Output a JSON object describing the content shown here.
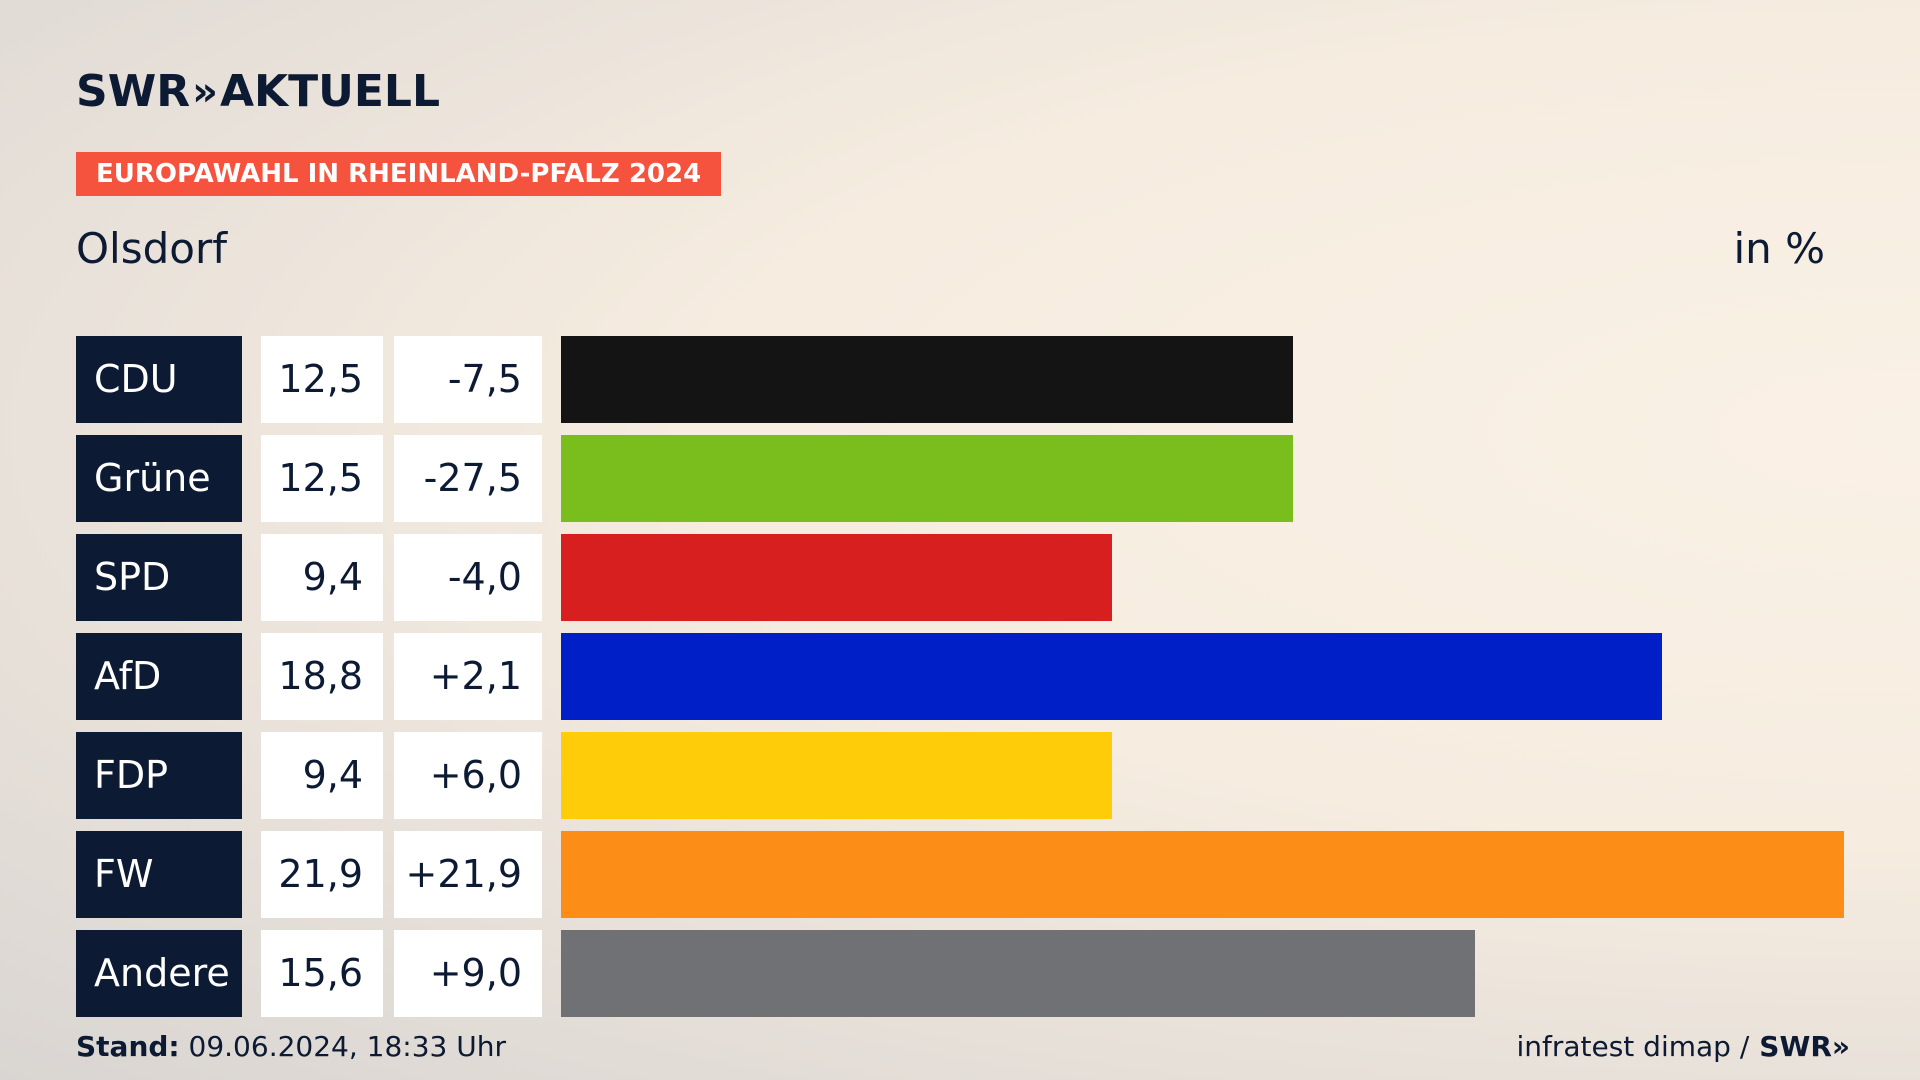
{
  "brand": {
    "logo_name": "SWR",
    "logo_chevrons": "»",
    "logo_suffix": "AKTUELL"
  },
  "tag": "EUROPAWAHL IN RHEINLAND-PFALZ 2024",
  "place": "Olsdorf",
  "unit": "in %",
  "chart_data": {
    "type": "bar",
    "orientation": "horizontal",
    "title": "Olsdorf",
    "unit": "in %",
    "categories": [
      "CDU",
      "Grüne",
      "SPD",
      "AfD",
      "FDP",
      "FW",
      "Andere"
    ],
    "values": [
      12.5,
      12.5,
      9.4,
      18.8,
      9.4,
      21.9,
      15.6
    ],
    "value_labels": [
      "12,5",
      "12,5",
      "9,4",
      "18,8",
      "9,4",
      "21,9",
      "15,6"
    ],
    "change_labels": [
      "-7,5",
      "-27,5",
      "-4,0",
      "+2,1",
      "+6,0",
      "+21,9",
      "+9,0"
    ],
    "changes": [
      -7.5,
      -27.5,
      -4.0,
      2.1,
      6.0,
      21.9,
      9.0
    ],
    "colors": [
      "#141414",
      "#7abe1e",
      "#d71f1f",
      "#001fc6",
      "#ffcc0a",
      "#fc8e18",
      "#707174"
    ],
    "xlim": [
      0,
      21.9
    ],
    "grid": false,
    "legend": "none"
  },
  "footer": {
    "stand_label": "Stand:",
    "stand_value": "09.06.2024, 18:33 Uhr",
    "source": "infratest dimap /",
    "source_logo": "SWR",
    "source_chevrons": "»"
  }
}
